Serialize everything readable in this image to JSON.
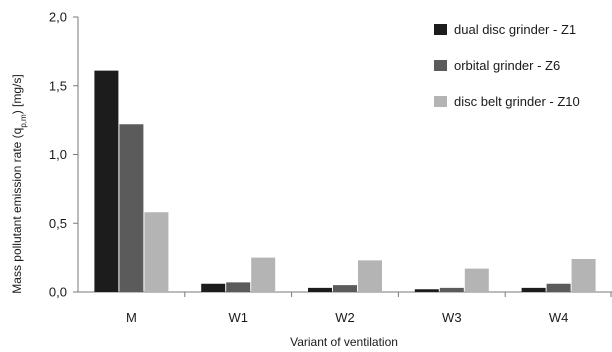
{
  "chart_data": {
    "type": "bar",
    "xlabel": "Variant of ventilation",
    "ylabel": "Mass pollutant emission rate (q",
    "ylabel_sub": "p,m",
    "ylabel_unit": ") [mg/s]",
    "ylim": [
      0,
      2.0
    ],
    "yticks": [
      "0,0",
      "0,5",
      "1,0",
      "1,5",
      "2,0"
    ],
    "categories": [
      "M",
      "W1",
      "W2",
      "W3",
      "W4"
    ],
    "series": [
      {
        "name": "dual disc grinder - Z1",
        "color": "#1c1c1c",
        "values": [
          1.61,
          0.06,
          0.03,
          0.02,
          0.03
        ]
      },
      {
        "name": "orbital grinder - Z6",
        "color": "#5b5b5b",
        "values": [
          1.22,
          0.07,
          0.05,
          0.03,
          0.06
        ]
      },
      {
        "name": "disc belt grinder - Z10",
        "color": "#b4b4b4",
        "values": [
          0.58,
          0.25,
          0.23,
          0.17,
          0.24
        ]
      }
    ],
    "grid": false,
    "legend_position": "top-right"
  }
}
